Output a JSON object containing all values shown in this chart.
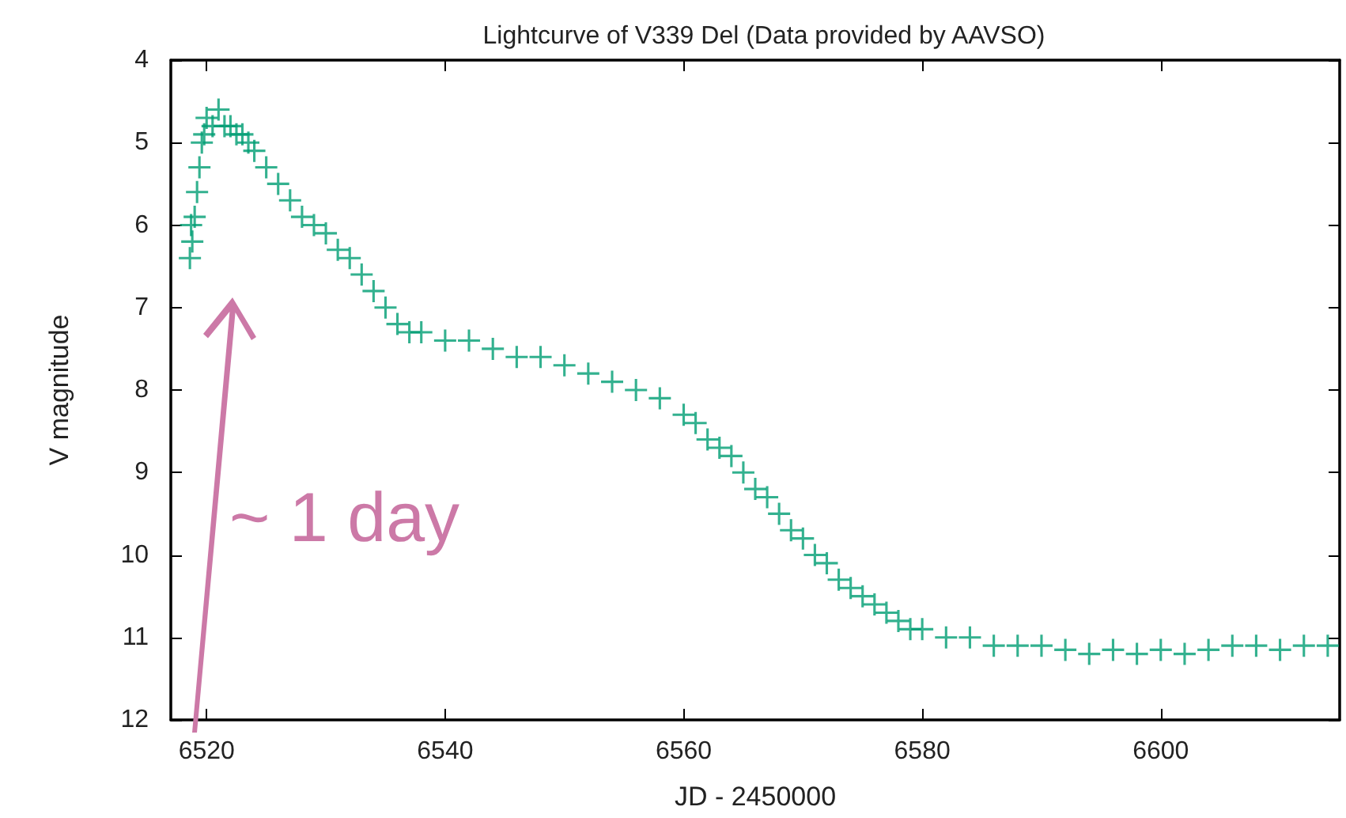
{
  "chart_data": {
    "type": "scatter",
    "title": "Lightcurve of V339 Del (Data provided by AAVSO)",
    "xlabel": "JD - 2450000",
    "ylabel": "V magnitude",
    "annotations": [
      "~ 1 day"
    ],
    "marker": "cross",
    "grid": false,
    "xlim": [
      6517,
      6615
    ],
    "xticks": [
      6520,
      6540,
      6560,
      6580,
      6600
    ],
    "ylim": [
      12,
      4
    ],
    "yticks": [
      4,
      5,
      6,
      7,
      8,
      9,
      10,
      11,
      12
    ],
    "series": [
      {
        "color": "#009e73",
        "x": [
          6518.6,
          6518.7,
          6518.8,
          6519.0,
          6519.2,
          6519.4,
          6519.6,
          6519.8,
          6520.0,
          6520.5,
          6521,
          6521.5,
          6522,
          6522.5,
          6523,
          6523.5,
          6524,
          6525,
          6526,
          6527,
          6528,
          6529,
          6530,
          6531,
          6532,
          6533,
          6534,
          6535,
          6536,
          6537,
          6538,
          6540,
          6542,
          6544,
          6546,
          6548,
          6550,
          6552,
          6554,
          6556,
          6558,
          6560,
          6561,
          6562,
          6563,
          6564,
          6565,
          6566,
          6567,
          6568,
          6569,
          6570,
          6571,
          6572,
          6573,
          6574,
          6575,
          6576,
          6577,
          6578,
          6579,
          6580,
          6582,
          6584,
          6586,
          6588,
          6590,
          6592,
          6594,
          6596,
          6598,
          6600,
          6602,
          6604,
          6606,
          6608,
          6610,
          6612,
          6614
        ],
        "values": [
          6.4,
          6.0,
          6.2,
          5.9,
          5.6,
          5.3,
          5.0,
          4.9,
          4.7,
          4.8,
          4.6,
          4.8,
          4.8,
          4.9,
          4.9,
          5.0,
          5.1,
          5.3,
          5.5,
          5.7,
          5.9,
          6.0,
          6.1,
          6.3,
          6.4,
          6.6,
          6.8,
          7.0,
          7.2,
          7.3,
          7.3,
          7.4,
          7.4,
          7.5,
          7.6,
          7.6,
          7.7,
          7.8,
          7.9,
          8.0,
          8.1,
          8.3,
          8.4,
          8.6,
          8.7,
          8.8,
          9.0,
          9.2,
          9.3,
          9.5,
          9.7,
          9.8,
          10.0,
          10.1,
          10.3,
          10.4,
          10.5,
          10.6,
          10.7,
          10.8,
          10.9,
          10.9,
          11.0,
          11.0,
          11.1,
          11.1,
          11.1,
          11.15,
          11.2,
          11.15,
          11.2,
          11.15,
          11.2,
          11.15,
          11.1,
          11.1,
          11.15,
          11.1,
          11.1
        ]
      }
    ]
  }
}
